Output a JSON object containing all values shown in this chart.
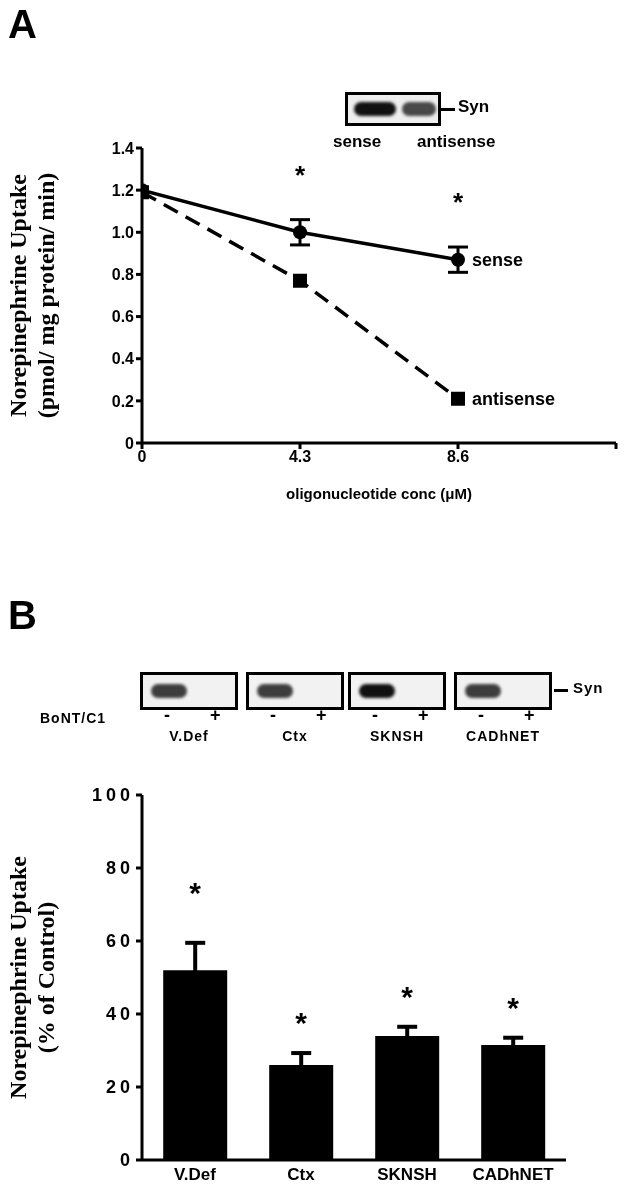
{
  "chart_data": [
    {
      "type": "line",
      "title": "A",
      "xlabel": "oligonucleotide conc (μM)",
      "ylabel": "Norepinephrine  Uptake\n(pmol/ mg protein/ min)",
      "x": [
        0,
        4.3,
        8.6
      ],
      "xlim": [
        0,
        12.9
      ],
      "xticks": [
        0,
        4.3,
        8.6,
        {
          "value": 12.9,
          "label": null
        }
      ],
      "ylim": [
        0,
        1.4
      ],
      "yticks": [
        {
          "value": 0,
          "label": "0"
        },
        0.2,
        0.4,
        0.6,
        0.8,
        {
          "value": 1,
          "label": "1.0"
        },
        1.2,
        1.4
      ],
      "series": [
        {
          "name": "sense",
          "color": "#000000",
          "values": [
            1.2,
            1.0,
            0.87
          ],
          "errors": [
            null,
            0.06,
            0.06
          ],
          "marker": "circle",
          "line_style": "solid"
        },
        {
          "name": "antisense",
          "color": "#000000",
          "values": [
            1.19,
            0.77,
            0.21
          ],
          "marker": "square",
          "line_style": "dashed"
        }
      ],
      "annotations": [
        "*",
        "*",
        "Syn",
        "sense",
        "antisense"
      ]
    },
    {
      "type": "bar",
      "title": "B",
      "ylabel": "Norepinephrine Uptake\n(% of Control)",
      "categories": [
        "V.Def",
        "Ctx",
        "SKNSH",
        "CADhNET"
      ],
      "values": [
        52,
        26,
        34,
        31.5
      ],
      "errors": [
        7.5,
        3.3,
        2.5,
        2
      ],
      "color": "#000000",
      "ylim": [
        0,
        100
      ],
      "yticks": [
        0,
        20,
        40,
        60,
        80,
        100
      ],
      "annotations": [
        "*",
        "*",
        "*",
        "*",
        "Syn",
        "BoNT/C1",
        "-",
        "+"
      ]
    }
  ]
}
